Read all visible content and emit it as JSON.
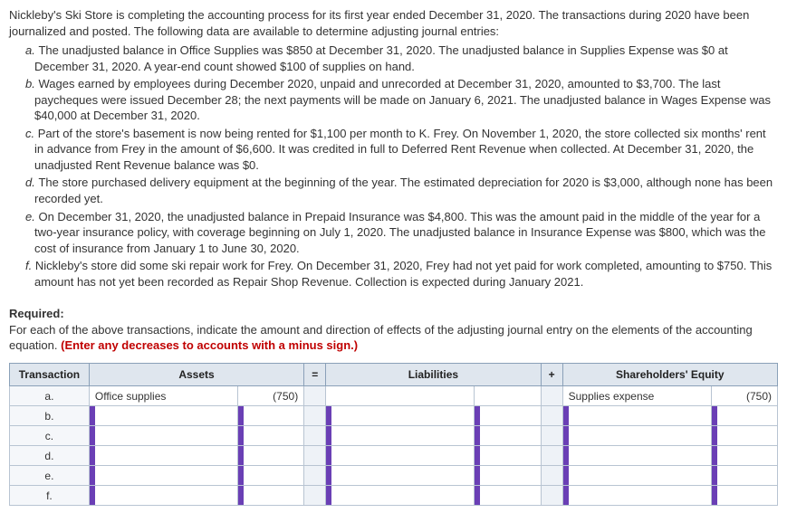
{
  "intro": "Nickleby's Ski Store is completing the accounting process for its first year ended December 31, 2020. The transactions during 2020 have been journalized and posted. The following data are available to determine adjusting journal entries:",
  "items": [
    {
      "label": "a.",
      "text": "The unadjusted balance in Office Supplies was $850 at December 31, 2020. The unadjusted balance in Supplies Expense was $0 at December 31, 2020. A year-end count showed $100 of supplies on hand."
    },
    {
      "label": "b.",
      "text": "Wages earned by employees during December 2020, unpaid and unrecorded at December 31, 2020, amounted to $3,700. The last paycheques were issued December 28; the next payments will be made on January 6, 2021. The unadjusted balance in Wages Expense was $40,000 at December 31, 2020."
    },
    {
      "label": "c.",
      "text": "Part of the store's basement is now being rented for $1,100 per month to K. Frey. On November 1, 2020, the store collected six months' rent in advance from Frey in the amount of $6,600. It was credited in full to Deferred Rent Revenue when collected. At December 31, 2020, the unadjusted Rent Revenue balance was $0."
    },
    {
      "label": "d.",
      "text": "The store purchased delivery equipment at the beginning of the year. The estimated depreciation for 2020 is $3,000, although none has been recorded yet."
    },
    {
      "label": "e.",
      "text": "On December 31, 2020, the unadjusted balance in Prepaid Insurance was $4,800. This was the amount paid in the middle of the year for a two-year insurance policy, with coverage beginning on July 1, 2020. The unadjusted balance in Insurance Expense was $800, which was the cost of insurance from January 1 to June 30, 2020."
    },
    {
      "label": "f.",
      "text": "Nickleby's store did some ski repair work for Frey. On December 31, 2020, Frey had not yet paid for work completed, amounting to $750. This amount has not yet been recorded as Repair Shop Revenue. Collection is expected during January 2021."
    }
  ],
  "required": {
    "heading": "Required:",
    "text": "For each of the above transactions, indicate the amount and direction of effects of the adjusting journal entry on the elements of the accounting equation. ",
    "red": "(Enter any decreases to accounts with a minus sign.)"
  },
  "table": {
    "headers": {
      "transaction": "Transaction",
      "assets": "Assets",
      "eq": "=",
      "liabilities": "Liabilities",
      "plus": "+",
      "equity": "Shareholders' Equity"
    },
    "rows": [
      {
        "label": "a.",
        "asset_name": "Office supplies",
        "asset_amt": "(750)",
        "liab_name": "",
        "liab_amt": "",
        "eq_name": "Supplies expense",
        "eq_amt": "(750)"
      },
      {
        "label": "b.",
        "asset_name": "",
        "asset_amt": "",
        "liab_name": "",
        "liab_amt": "",
        "eq_name": "",
        "eq_amt": ""
      },
      {
        "label": "c.",
        "asset_name": "",
        "asset_amt": "",
        "liab_name": "",
        "liab_amt": "",
        "eq_name": "",
        "eq_amt": ""
      },
      {
        "label": "d.",
        "asset_name": "",
        "asset_amt": "",
        "liab_name": "",
        "liab_amt": "",
        "eq_name": "",
        "eq_amt": ""
      },
      {
        "label": "e.",
        "asset_name": "",
        "asset_amt": "",
        "liab_name": "",
        "liab_amt": "",
        "eq_name": "",
        "eq_amt": ""
      },
      {
        "label": "f.",
        "asset_name": "",
        "asset_amt": "",
        "liab_name": "",
        "liab_amt": "",
        "eq_name": "",
        "eq_amt": ""
      }
    ]
  }
}
